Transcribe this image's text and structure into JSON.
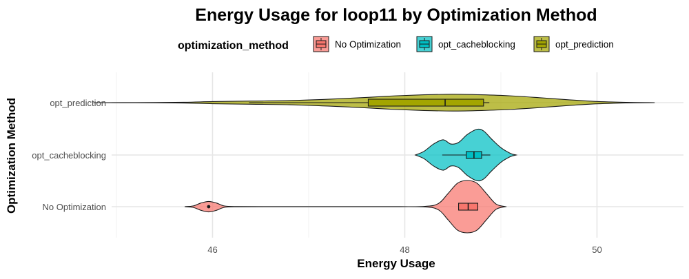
{
  "chart_data": {
    "type": "violin",
    "title": "Energy Usage for loop11 by Optimization Method",
    "xlabel": "Energy Usage",
    "ylabel": "Optimization Method",
    "legend_title": "optimization_method",
    "legend_position": "top",
    "grid": true,
    "xlim": [
      44.95,
      50.9
    ],
    "x_ticks": [
      46,
      48,
      50
    ],
    "x_tick_labels": [
      "46",
      "48",
      "50"
    ],
    "categories": [
      "No Optimization",
      "opt_cacheblocking",
      "opt_prediction"
    ],
    "series": [
      {
        "name": "No Optimization",
        "color": "#F8766D",
        "range": [
          45.71,
          49.05
        ],
        "box": {
          "q1": 48.56,
          "median": 48.66,
          "q3": 48.76,
          "whisker_low": 48.56,
          "whisker_high": 48.76
        },
        "outliers": [
          45.96
        ],
        "density": [
          [
            45.71,
            0.0
          ],
          [
            45.8,
            0.03
          ],
          [
            45.88,
            0.14
          ],
          [
            45.96,
            0.2
          ],
          [
            46.04,
            0.14
          ],
          [
            46.12,
            0.03
          ],
          [
            46.25,
            0.005
          ],
          [
            46.6,
            0.003
          ],
          [
            47.2,
            0.003
          ],
          [
            47.8,
            0.003
          ],
          [
            48.2,
            0.01
          ],
          [
            48.35,
            0.12
          ],
          [
            48.45,
            0.5
          ],
          [
            48.55,
            0.9
          ],
          [
            48.65,
            1.0
          ],
          [
            48.75,
            0.9
          ],
          [
            48.85,
            0.5
          ],
          [
            48.95,
            0.1
          ],
          [
            49.05,
            0.0
          ]
        ]
      },
      {
        "name": "opt_cacheblocking",
        "color": "#00BFC4",
        "range": [
          48.11,
          49.16
        ],
        "box": {
          "q1": 48.64,
          "median": 48.72,
          "q3": 48.8,
          "whisker_low": 48.39,
          "whisker_high": 48.89
        },
        "outliers": [],
        "density": [
          [
            48.11,
            0.0
          ],
          [
            48.2,
            0.14
          ],
          [
            48.3,
            0.42
          ],
          [
            48.4,
            0.58
          ],
          [
            48.48,
            0.42
          ],
          [
            48.56,
            0.48
          ],
          [
            48.65,
            0.78
          ],
          [
            48.75,
            0.98
          ],
          [
            48.82,
            0.92
          ],
          [
            48.9,
            0.62
          ],
          [
            49.0,
            0.28
          ],
          [
            49.1,
            0.06
          ],
          [
            49.16,
            0.0
          ]
        ]
      },
      {
        "name": "opt_prediction",
        "color": "#A3A500",
        "range": [
          44.76,
          50.6
        ],
        "box": {
          "q1": 47.62,
          "median": 48.42,
          "q3": 48.82,
          "whisker_low": 46.38,
          "whisker_high": 48.88
        },
        "outliers": [],
        "density": [
          [
            44.76,
            0.0
          ],
          [
            45.2,
            0.003
          ],
          [
            45.7,
            0.015
          ],
          [
            46.0,
            0.04
          ],
          [
            46.4,
            0.06
          ],
          [
            46.8,
            0.08
          ],
          [
            47.2,
            0.13
          ],
          [
            47.6,
            0.2
          ],
          [
            47.9,
            0.26
          ],
          [
            48.2,
            0.3
          ],
          [
            48.5,
            0.32
          ],
          [
            48.8,
            0.3
          ],
          [
            49.1,
            0.26
          ],
          [
            49.4,
            0.19
          ],
          [
            49.7,
            0.11
          ],
          [
            50.0,
            0.045
          ],
          [
            50.3,
            0.012
          ],
          [
            50.6,
            0.0
          ]
        ]
      }
    ]
  }
}
